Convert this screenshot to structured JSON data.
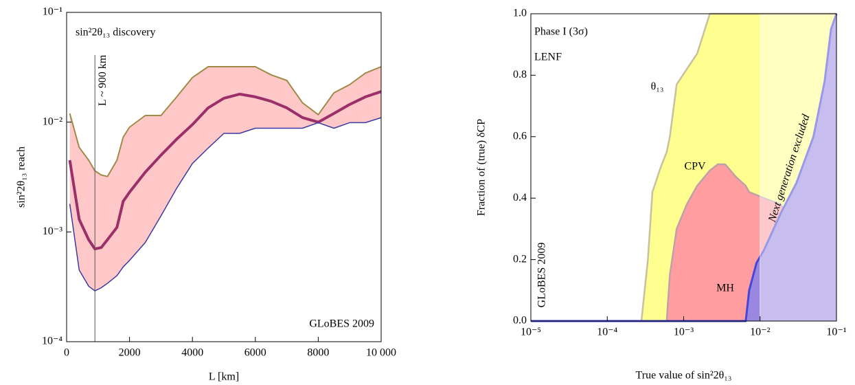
{
  "chart_data": [
    {
      "type": "line",
      "title": "sin²2θ₁₃ discovery",
      "x_label": "L [km]",
      "y_label": "sin²2θ₁₃ reach",
      "annotation": "GLoBES 2009",
      "vline": {
        "x": 900,
        "label": "L ~ 900 km"
      },
      "x": [
        100,
        400,
        700,
        900,
        1100,
        1300,
        1600,
        1800,
        2000,
        2500,
        3000,
        3500,
        4000,
        4500,
        5000,
        5500,
        6000,
        6500,
        7000,
        7500,
        8000,
        8500,
        9000,
        9500,
        10000
      ],
      "series": [
        {
          "color": "#a08a48",
          "width": 2,
          "values": [
            0.012,
            0.0059,
            0.0045,
            0.0036,
            0.0033,
            0.0032,
            0.0045,
            0.0073,
            0.009,
            0.0115,
            0.0115,
            0.017,
            0.0255,
            0.032,
            0.032,
            0.032,
            0.032,
            0.027,
            0.024,
            0.015,
            0.0117,
            0.0185,
            0.022,
            0.028,
            0.032
          ]
        },
        {
          "color": "#9b2f6a",
          "width": 4,
          "values": [
            0.0045,
            0.0013,
            0.00085,
            0.0007,
            0.00072,
            0.00085,
            0.0011,
            0.0019,
            0.0023,
            0.0035,
            0.005,
            0.007,
            0.0095,
            0.0135,
            0.0165,
            0.018,
            0.017,
            0.0155,
            0.0135,
            0.011,
            0.01,
            0.012,
            0.0145,
            0.017,
            0.019
          ]
        },
        {
          "color": "#3a3aa0",
          "width": 1.5,
          "values": [
            0.0018,
            0.00045,
            0.00032,
            0.00029,
            0.00031,
            0.00034,
            0.0004,
            0.00048,
            0.00055,
            0.0008,
            0.0014,
            0.0025,
            0.0042,
            0.0058,
            0.0079,
            0.0079,
            0.0088,
            0.0088,
            0.0088,
            0.0088,
            0.0099,
            0.0088,
            0.0099,
            0.0099,
            0.011
          ]
        }
      ],
      "fill_between": [
        0,
        2
      ],
      "fill_color": "#ffc8c8",
      "xlim": [
        0,
        10000
      ],
      "xticks": [
        0,
        2000,
        4000,
        6000,
        8000,
        {
          "value": 10000,
          "label": "10 000"
        }
      ],
      "y_scale": "log",
      "ylim": [
        0.0001,
        0.1
      ],
      "yticks": [
        {
          "value": 0.0001,
          "label": "10⁻⁴"
        },
        {
          "value": 0.001,
          "label": "10⁻³"
        },
        {
          "value": 0.01,
          "label": "10⁻²"
        },
        {
          "value": 0.1,
          "label": "10⁻¹"
        }
      ]
    },
    {
      "type": "area",
      "title": "Phase I (3σ)",
      "subtitle": "LENF",
      "x_label": "True value of sin²2θ₁₃",
      "y_label": "Fraction of (true) δCP",
      "annotation": "GLoBES 2009",
      "excluded": {
        "from": 0.01,
        "label": "Next generation excluded"
      },
      "x": [
        1e-05,
        0.00028,
        0.00034,
        0.00039,
        0.0005,
        0.0006,
        0.00066,
        0.00081,
        0.0011,
        0.0015,
        0.0022,
        0.0028,
        0.0035,
        0.0048,
        0.0065,
        0.0072,
        0.009,
        0.0112,
        0.0186,
        0.03,
        0.05,
        0.07,
        0.085,
        0.1
      ],
      "series": [
        {
          "name": "θ₁₃",
          "color": "#ffff90",
          "stroke": "#c8c0a0",
          "values": [
            0,
            0,
            0.2,
            0.42,
            0.5,
            0.55,
            0.6,
            0.77,
            0.82,
            0.87,
            1,
            1,
            1,
            1,
            1,
            1,
            1,
            1,
            1,
            1,
            1,
            1,
            1,
            1
          ]
        },
        {
          "name": "CPV",
          "color": "#ff9da0",
          "stroke": "#c0a0a8",
          "values": [
            0,
            0,
            0,
            0,
            0,
            0,
            0.15,
            0.3,
            0.38,
            0.44,
            0.49,
            0.51,
            0.51,
            0.47,
            0.44,
            0.42,
            0.41,
            0.4,
            0.38,
            0.3,
            null,
            null,
            null,
            null
          ]
        },
        {
          "name": "MH",
          "color": "#9a88e0",
          "stroke": "#4646d8",
          "values": [
            0,
            0,
            0,
            0,
            0,
            0,
            0,
            0,
            0,
            0,
            0,
            0,
            0,
            0,
            0,
            0.1,
            0.19,
            0.23,
            0.35,
            0.45,
            0.6,
            0.78,
            0.95,
            1
          ]
        }
      ],
      "x_scale": "log",
      "xlim": [
        1e-05,
        0.1
      ],
      "xticks": [
        {
          "value": 1e-05,
          "label": "10⁻⁵"
        },
        {
          "value": 0.0001,
          "label": "10⁻⁴"
        },
        {
          "value": 0.001,
          "label": "10⁻³"
        },
        {
          "value": 0.01,
          "label": "10⁻²"
        },
        {
          "value": 0.1,
          "label": "10⁻¹"
        }
      ],
      "ylim": [
        0,
        1
      ],
      "yticks": [
        {
          "value": 0,
          "label": "0.0"
        },
        0.2,
        0.4,
        0.6,
        0.8,
        {
          "value": 1,
          "label": "1.0"
        }
      ]
    }
  ]
}
